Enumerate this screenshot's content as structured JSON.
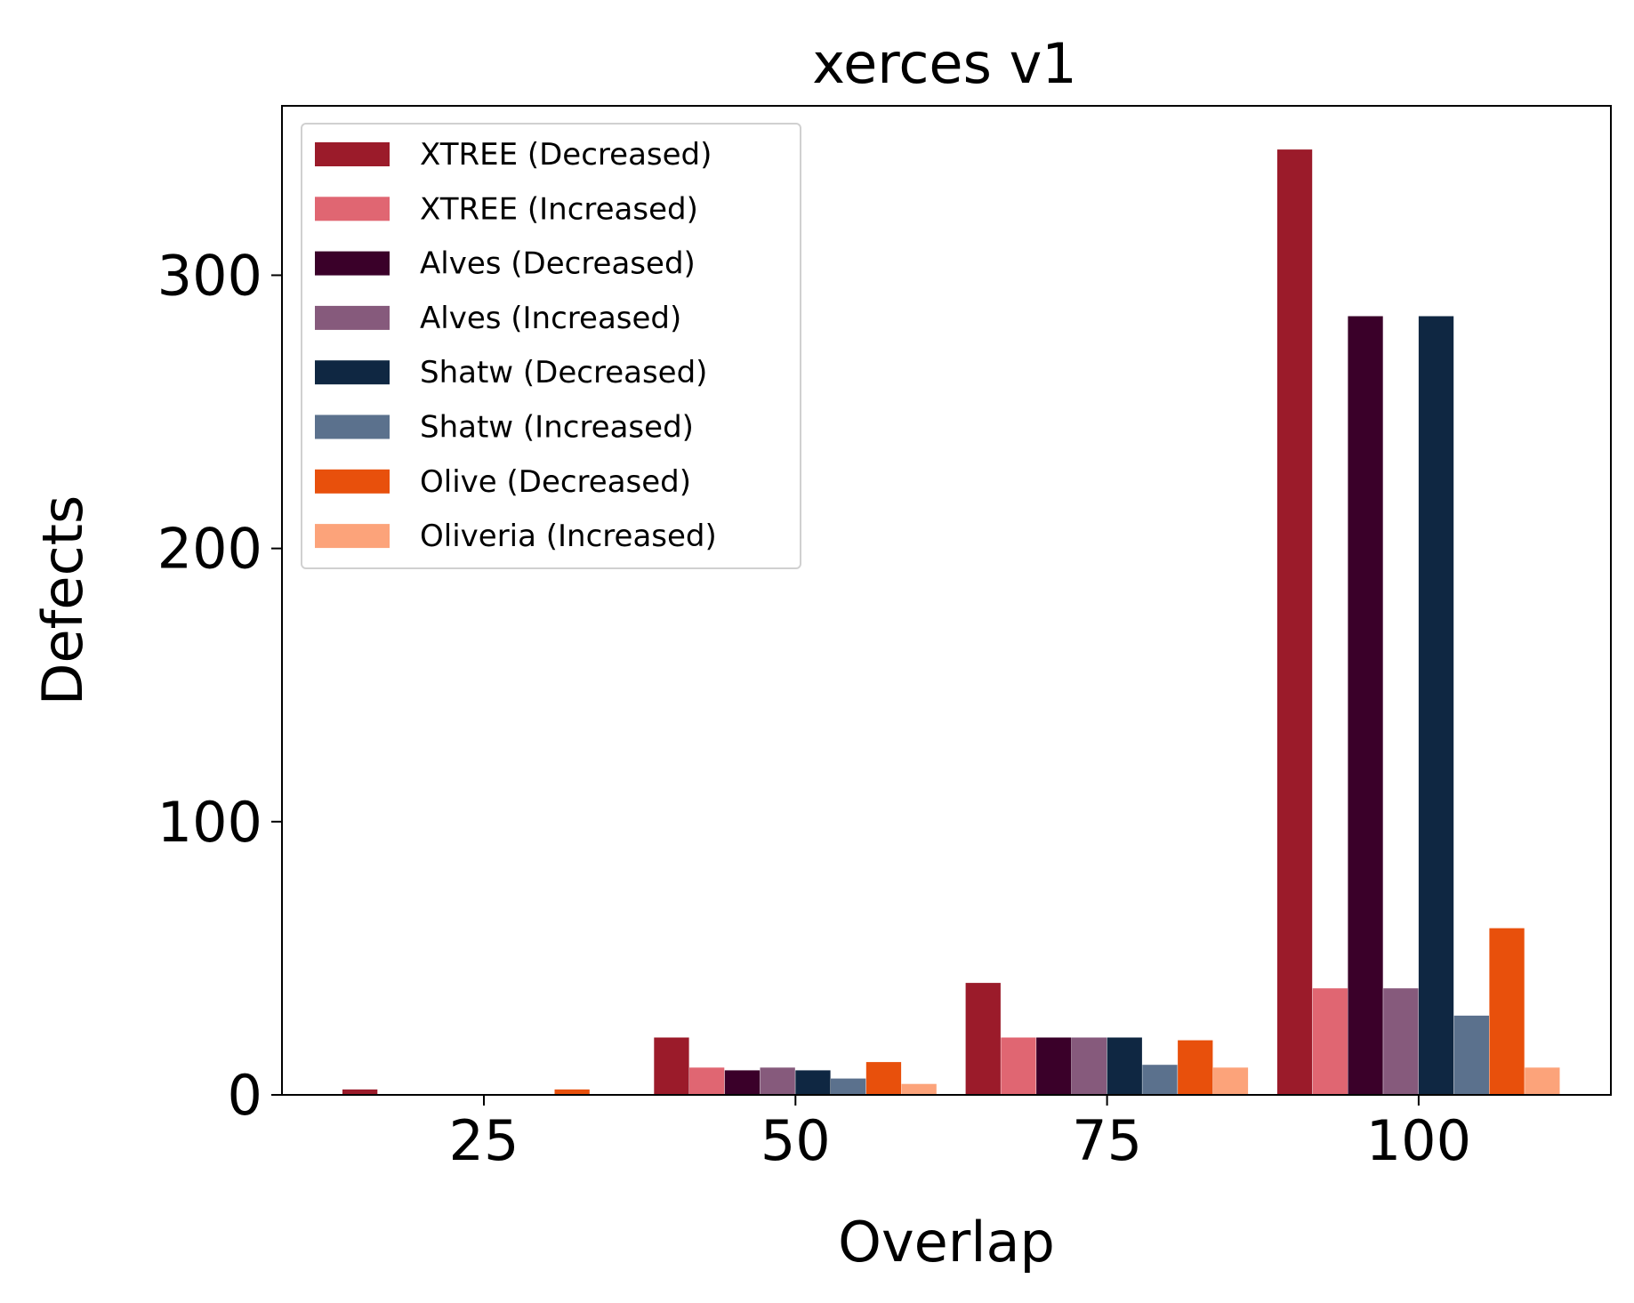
{
  "chart_data": {
    "type": "bar",
    "title": "xerces v1",
    "xlabel": "Overlap",
    "ylabel": "Defects",
    "categories": [
      "25",
      "50",
      "75",
      "100"
    ],
    "yticks": [
      "0",
      "100",
      "200",
      "300"
    ],
    "ylim": [
      0,
      362
    ],
    "grid": false,
    "legend_position": "top-left",
    "series": [
      {
        "name": "XTREE (Decreased)",
        "color": "#9b1b2a",
        "values": [
          2,
          21,
          41,
          346
        ]
      },
      {
        "name": "XTREE (Increased)",
        "color": "#e06672",
        "values": [
          0,
          10,
          21,
          39
        ]
      },
      {
        "name": "Alves (Decreased)",
        "color": "#3a0029",
        "values": [
          0,
          9,
          21,
          285
        ]
      },
      {
        "name": "Alves (Increased)",
        "color": "#865a7c",
        "values": [
          0,
          10,
          21,
          39
        ]
      },
      {
        "name": "Shatw (Decreased)",
        "color": "#0f2742",
        "values": [
          0,
          9,
          21,
          285
        ]
      },
      {
        "name": "Shatw (Increased)",
        "color": "#5b718d",
        "values": [
          0,
          6,
          11,
          29
        ]
      },
      {
        "name": "Olive (Decreased)",
        "color": "#e8500c",
        "values": [
          2,
          12,
          20,
          61
        ]
      },
      {
        "name": "Oliveria (Increased)",
        "color": "#fca37a",
        "values": [
          0,
          4,
          10,
          10
        ]
      }
    ]
  }
}
